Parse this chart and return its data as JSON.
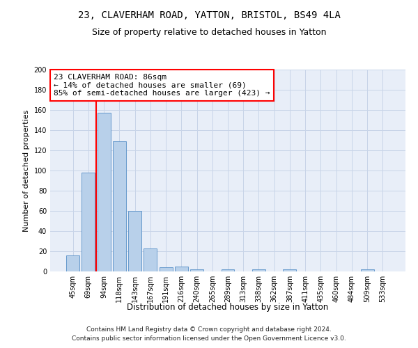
{
  "title1": "23, CLAVERHAM ROAD, YATTON, BRISTOL, BS49 4LA",
  "title2": "Size of property relative to detached houses in Yatton",
  "xlabel": "Distribution of detached houses by size in Yatton",
  "ylabel": "Number of detached properties",
  "bin_labels": [
    "45sqm",
    "69sqm",
    "94sqm",
    "118sqm",
    "143sqm",
    "167sqm",
    "191sqm",
    "216sqm",
    "240sqm",
    "265sqm",
    "289sqm",
    "313sqm",
    "338sqm",
    "362sqm",
    "387sqm",
    "411sqm",
    "435sqm",
    "460sqm",
    "484sqm",
    "509sqm",
    "533sqm"
  ],
  "bar_values": [
    16,
    98,
    157,
    129,
    60,
    23,
    4,
    5,
    2,
    0,
    2,
    0,
    2,
    0,
    2,
    0,
    0,
    0,
    0,
    2,
    0
  ],
  "bar_color": "#b8d0ea",
  "bar_edge_color": "#6699cc",
  "vline_color": "red",
  "vline_x_index": 2,
  "annotation_line1": "23 CLAVERHAM ROAD: 86sqm",
  "annotation_line2": "← 14% of detached houses are smaller (69)",
  "annotation_line3": "85% of semi-detached houses are larger (423) →",
  "annotation_box_color": "white",
  "annotation_box_edge_color": "red",
  "ylim": [
    0,
    200
  ],
  "yticks": [
    0,
    20,
    40,
    60,
    80,
    100,
    120,
    140,
    160,
    180,
    200
  ],
  "grid_color": "#c8d4e8",
  "background_color": "#e8eef8",
  "footer1": "Contains HM Land Registry data © Crown copyright and database right 2024.",
  "footer2": "Contains public sector information licensed under the Open Government Licence v3.0.",
  "title1_fontsize": 10,
  "title2_fontsize": 9,
  "xlabel_fontsize": 8.5,
  "ylabel_fontsize": 8,
  "tick_fontsize": 7,
  "annotation_fontsize": 8,
  "footer_fontsize": 6.5
}
